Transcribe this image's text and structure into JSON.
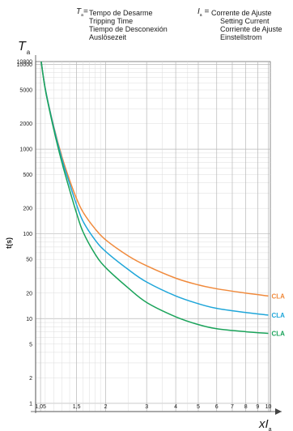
{
  "header": {
    "ta_symbol": "T",
    "ta_subscript": "a",
    "ta_lines": [
      "Tempo de Desarme",
      "Tripping Time",
      "Tiempo de Desconexión",
      "Auslösezeit"
    ],
    "ia_symbol": "I",
    "ia_subscript": "a",
    "ia_lines": [
      "Corrente de Ajuste",
      "Setting Current",
      "Corriente de Ajuste",
      "Einstellstrom"
    ]
  },
  "chart_data": {
    "type": "line",
    "title": "",
    "ylabel": "t(s)",
    "yaxis_symbol": "T",
    "yaxis_subscript": "a",
    "xaxis_symbol": "xI",
    "xaxis_subscript": "a",
    "xscale": "log",
    "yscale": "log",
    "xlim": [
      1.0,
      10.2
    ],
    "ylim": [
      0.8,
      10800
    ],
    "grid": true,
    "x_ticks": [
      1.05,
      1.5,
      2,
      3,
      4,
      5,
      6,
      7,
      8,
      9,
      10
    ],
    "x_tick_labels": [
      "1,05",
      "1,5",
      "2",
      "3",
      "4",
      "5",
      "6",
      "7",
      "8",
      "9",
      "10"
    ],
    "y_ticks": [
      1,
      2,
      5,
      10,
      20,
      50,
      100,
      200,
      500,
      1000,
      2000,
      5000,
      10000,
      10800
    ],
    "y_tick_labels": [
      "1",
      "2",
      "5",
      "10",
      "20",
      "50",
      "100",
      "200",
      "500",
      "1000",
      "2000",
      "5000",
      "10000",
      "10800"
    ],
    "series": [
      {
        "name": "CLA",
        "color": "#f08a3c",
        "x": [
          1.05,
          1.1,
          1.2,
          1.3,
          1.4,
          1.5,
          1.6,
          1.8,
          2.0,
          2.5,
          3.0,
          4.0,
          5.0,
          6.0,
          8.0,
          10.0
        ],
        "y": [
          12500,
          5200,
          1800,
          800,
          430,
          260,
          180,
          115,
          85,
          55,
          42,
          30,
          25,
          22.5,
          20,
          18.5
        ]
      },
      {
        "name": "CLA",
        "color": "#1fa6d9",
        "x": [
          1.05,
          1.1,
          1.2,
          1.3,
          1.4,
          1.5,
          1.6,
          1.8,
          2.0,
          2.5,
          3.0,
          4.0,
          5.0,
          6.0,
          8.0,
          10.0
        ],
        "y": [
          12500,
          5200,
          1750,
          750,
          390,
          220,
          140,
          85,
          62,
          38,
          27,
          18.5,
          15,
          13.2,
          11.8,
          11
        ]
      },
      {
        "name": "CLA",
        "color": "#1aa35a",
        "x": [
          1.05,
          1.1,
          1.2,
          1.3,
          1.4,
          1.5,
          1.6,
          1.8,
          2.0,
          2.5,
          3.0,
          4.0,
          5.0,
          6.0,
          8.0,
          10.0
        ],
        "y": [
          12500,
          5100,
          1650,
          680,
          330,
          175,
          105,
          58,
          40,
          23,
          15.5,
          10.5,
          8.5,
          7.6,
          7.0,
          6.7
        ]
      }
    ]
  }
}
